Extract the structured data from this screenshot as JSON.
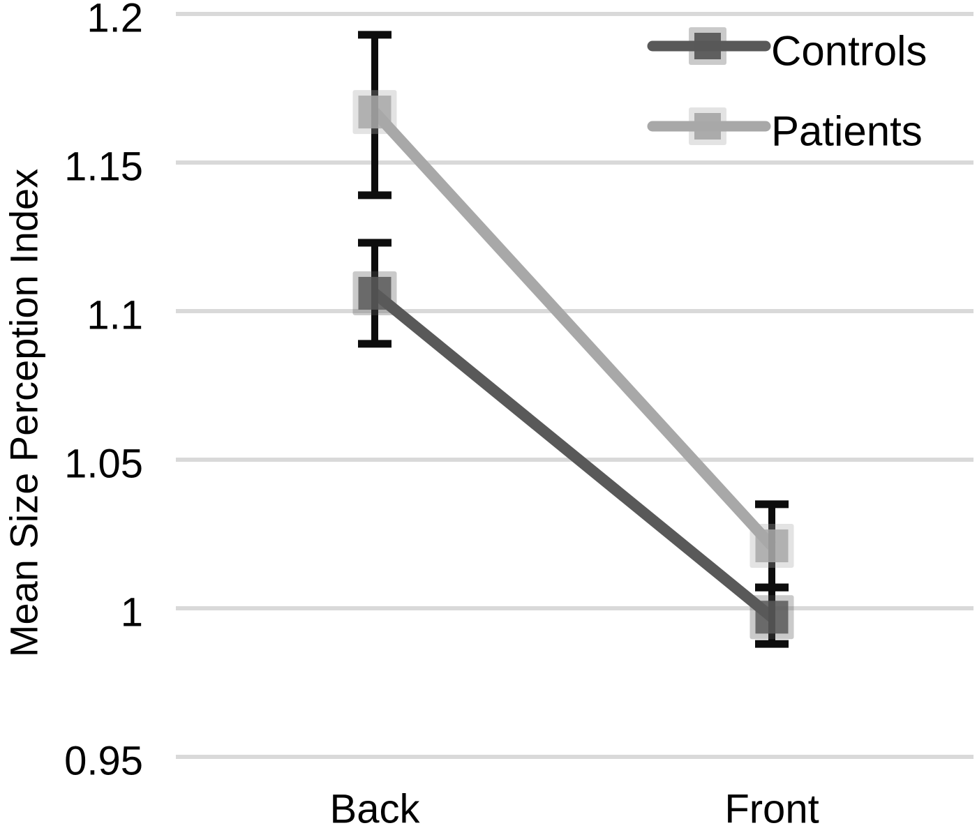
{
  "chart_data": {
    "type": "line",
    "title": "",
    "xlabel": "",
    "ylabel": "Mean Size Perception Index",
    "categories": [
      "Back",
      "Front"
    ],
    "yticks": [
      1.2,
      1.15,
      1.1,
      1.05,
      1,
      0.95
    ],
    "ylim": [
      0.95,
      1.2
    ],
    "grid": true,
    "legend_position": "top-right",
    "series": [
      {
        "name": "Controls",
        "color": "#595959",
        "values": [
          1.106,
          0.997
        ],
        "error_upper": [
          1.123,
          1.007
        ],
        "error_lower": [
          1.089,
          0.988
        ]
      },
      {
        "name": "Patients",
        "color": "#a8a8a8",
        "values": [
          1.167,
          1.021
        ],
        "error_upper": [
          1.193,
          1.035
        ],
        "error_lower": [
          1.139,
          1.007
        ]
      }
    ],
    "colors": {
      "gridline": "#d9d9d9",
      "error_bar": "#0d0d0d",
      "text": "#000000",
      "background": "#ffffff"
    }
  }
}
